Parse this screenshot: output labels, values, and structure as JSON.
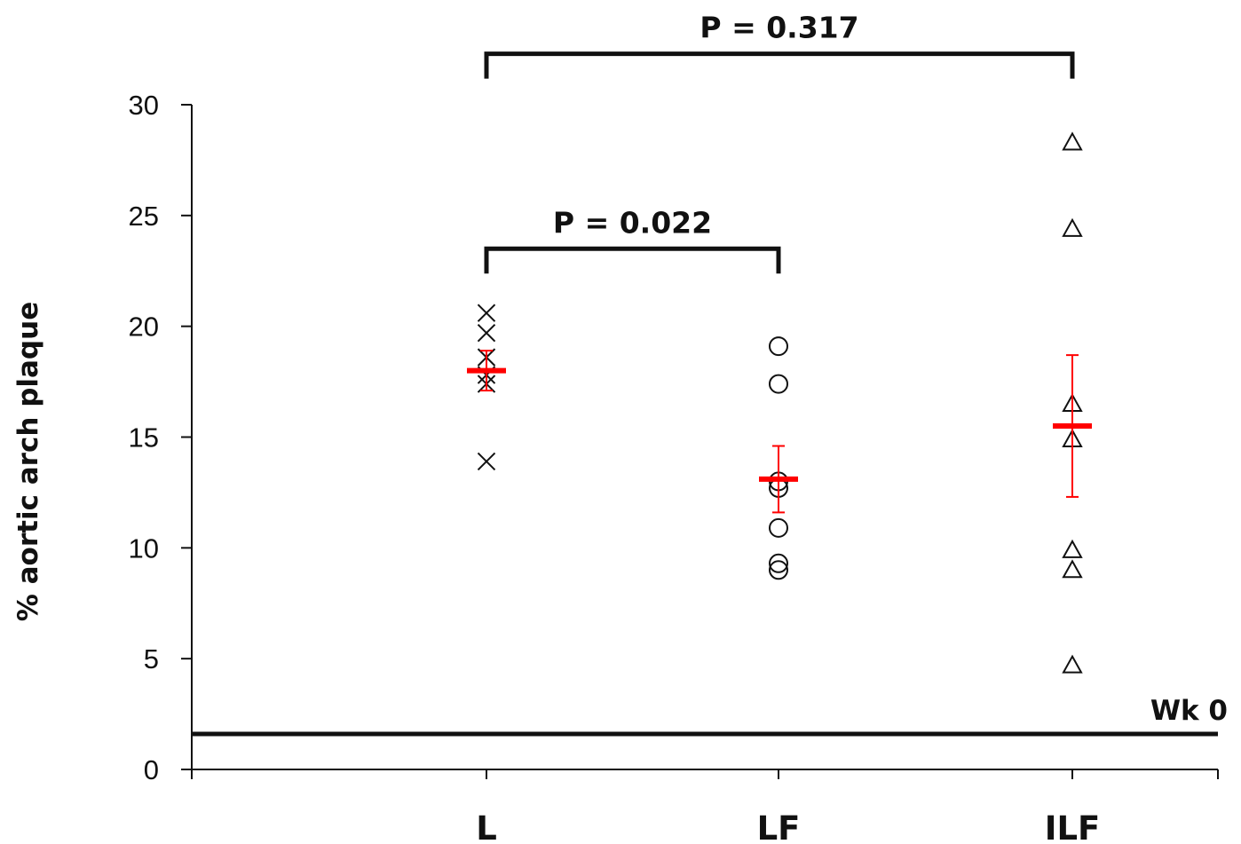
{
  "chart_data": {
    "type": "scatter",
    "title": "",
    "xlabel": "",
    "ylabel": "% aortic arch plaque",
    "ylim": [
      0,
      30
    ],
    "yticks": [
      0,
      5,
      10,
      15,
      20,
      25,
      30
    ],
    "grid": false,
    "legend": "none",
    "categories": [
      "L",
      "LF",
      "ILF"
    ],
    "groups": [
      {
        "category": "L",
        "marker": "x",
        "values": [
          20.6,
          19.7,
          18.6,
          17.8,
          17.4,
          13.9
        ],
        "mean": 18.0,
        "error": [
          17.1,
          18.9
        ]
      },
      {
        "category": "LF",
        "marker": "circle",
        "values": [
          19.1,
          17.4,
          13.0,
          12.7,
          10.9,
          9.3,
          9.0
        ],
        "mean": 13.1,
        "error": [
          11.6,
          14.6
        ]
      },
      {
        "category": "ILF",
        "marker": "triangle",
        "values": [
          28.3,
          24.4,
          16.5,
          14.9,
          9.9,
          9.0,
          4.7
        ],
        "mean": 15.5,
        "error": [
          12.3,
          18.7
        ]
      }
    ],
    "reference_line": {
      "value": 1.6,
      "label": "Wk 0"
    },
    "annotations": [
      {
        "text": "P = 0.022",
        "from": "L",
        "to": "LF",
        "level": 23.5
      },
      {
        "text": "P = 0.317",
        "from": "L",
        "to": "ILF",
        "level": 32.3
      }
    ],
    "colors": {
      "points": "#111111",
      "mean_and_error": "#ff0000",
      "axes": "#111111"
    }
  }
}
